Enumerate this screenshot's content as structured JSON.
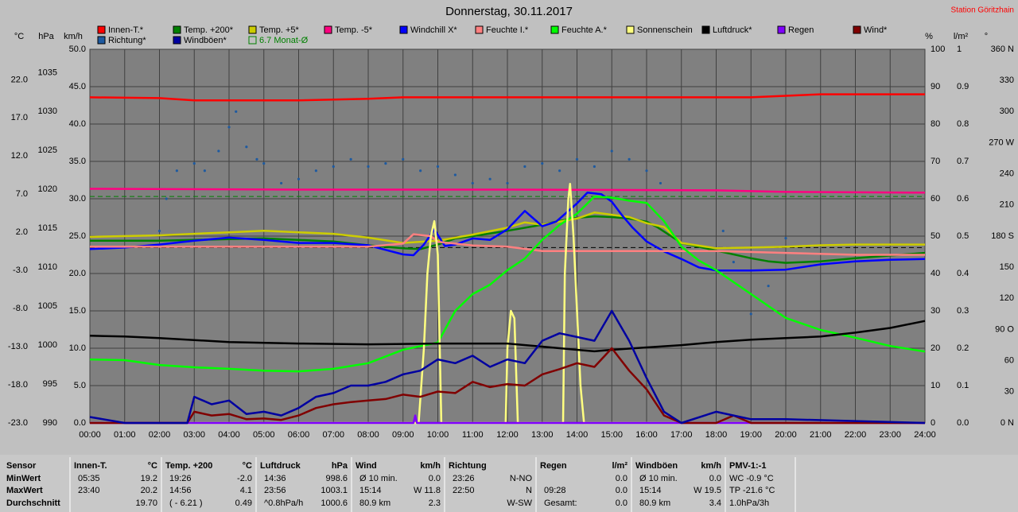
{
  "header": {
    "title": "Donnerstag, 30.11.2017",
    "station": "Station Göritzhain"
  },
  "chart_data": {
    "type": "line",
    "xlim": [
      0,
      24
    ],
    "xticks": [
      {
        "value": 0,
        "label": "00:00"
      },
      {
        "value": 1,
        "label": "01:00"
      },
      {
        "value": 2,
        "label": "02:00"
      },
      {
        "value": 3,
        "label": "03:00"
      },
      {
        "value": 4,
        "label": "04:00"
      },
      {
        "value": 5,
        "label": "05:00"
      },
      {
        "value": 6,
        "label": "06:00"
      },
      {
        "value": 7,
        "label": "07:00"
      },
      {
        "value": 8,
        "label": "08:00"
      },
      {
        "value": 9,
        "label": "09:00"
      },
      {
        "value": 10,
        "label": "10:00"
      },
      {
        "value": 11,
        "label": "11:00"
      },
      {
        "value": 12,
        "label": "12:00"
      },
      {
        "value": 13,
        "label": "13:00"
      },
      {
        "value": 14,
        "label": "14:00"
      },
      {
        "value": 15,
        "label": "15:00"
      },
      {
        "value": 16,
        "label": "16:00"
      },
      {
        "value": 17,
        "label": "17:00"
      },
      {
        "value": 18,
        "label": "18:00"
      },
      {
        "value": 19,
        "label": "19:00"
      },
      {
        "value": 20,
        "label": "20:00"
      },
      {
        "value": 21,
        "label": "21:00"
      },
      {
        "value": 22,
        "label": "22:00"
      },
      {
        "value": 23,
        "label": "23:00"
      },
      {
        "value": 24,
        "label": "24:00"
      }
    ],
    "axes": [
      {
        "label": "°C",
        "lim": [
          -23,
          26
        ],
        "ticks": [
          {
            "value": 22,
            "label": "22.0"
          },
          {
            "value": 17,
            "label": "17.0"
          },
          {
            "value": 12,
            "label": "12.0"
          },
          {
            "value": 7,
            "label": "7.0"
          },
          {
            "value": 2,
            "label": "2.0"
          },
          {
            "value": -3,
            "label": "-3.0"
          },
          {
            "value": -8,
            "label": "-8.0"
          },
          {
            "value": -13,
            "label": "-13.0"
          },
          {
            "value": -18,
            "label": "-18.0"
          },
          {
            "value": -23,
            "label": "-23.0"
          }
        ]
      },
      {
        "label": "hPa",
        "lim": [
          990,
          1038
        ],
        "ticks": [
          1035,
          1030,
          1025,
          1020,
          1015,
          1010,
          1005,
          1000,
          995,
          990
        ]
      },
      {
        "label": "km/h",
        "lim": [
          0,
          50
        ],
        "ticks": [
          {
            "value": 50,
            "label": "50.0"
          },
          {
            "value": 45,
            "label": "45.0"
          },
          {
            "value": 40,
            "label": "40.0"
          },
          {
            "value": 35,
            "label": "35.0"
          },
          {
            "value": 30,
            "label": "30.0"
          },
          {
            "value": 25,
            "label": "25.0"
          },
          {
            "value": 20,
            "label": "20.0"
          },
          {
            "value": 15,
            "label": "15.0"
          },
          {
            "value": 10,
            "label": "10.0"
          },
          {
            "value": 5,
            "label": "5.0"
          },
          {
            "value": 0,
            "label": "0.0"
          }
        ]
      },
      {
        "label": "%",
        "lim": [
          0,
          100
        ],
        "ticks": [
          100,
          90,
          80,
          70,
          60,
          50,
          40,
          30,
          20,
          10,
          0
        ]
      },
      {
        "label": "l/m²",
        "lim": [
          0,
          1
        ],
        "ticks": [
          1,
          0.9,
          0.8,
          0.7,
          0.6,
          0.5,
          0.4,
          0.3,
          0.2,
          0.1,
          {
            "value": 0,
            "label": "0.0"
          }
        ]
      },
      {
        "label": "°",
        "lim": [
          0,
          360
        ],
        "ticks": [
          {
            "value": 360,
            "label": "360 N"
          },
          330,
          300,
          {
            "value": 270,
            "label": "270 W"
          },
          240,
          210,
          {
            "value": 180,
            "label": "180 S"
          },
          150,
          120,
          {
            "value": 90,
            "label": "90 O"
          },
          60,
          30,
          {
            "value": 0,
            "label": "0 N"
          }
        ]
      }
    ],
    "grid": true,
    "grid_axis": "km/h",
    "series": [
      {
        "name": "Innen-T.*",
        "color": "#ff0000",
        "axis": "°C",
        "x": [
          0,
          2,
          3,
          6,
          8,
          9,
          12,
          16,
          19,
          20,
          21,
          24
        ],
        "values": [
          19.7,
          19.6,
          19.3,
          19.3,
          19.5,
          19.7,
          19.7,
          19.7,
          19.7,
          19.9,
          20.1,
          20.1
        ]
      },
      {
        "name": "Temp. +200*",
        "color": "#008000",
        "axis": "°C",
        "x": [
          0,
          2,
          4,
          5,
          7,
          8,
          9,
          9.5,
          10,
          10.5,
          11,
          12,
          13,
          13.5,
          14,
          14.5,
          15,
          15.5,
          16,
          16.3,
          17,
          18,
          19,
          19.5,
          20,
          21,
          22,
          24
        ],
        "values": [
          0.9,
          0.9,
          1.1,
          1.2,
          0.8,
          0.3,
          -0.1,
          -0.2,
          0.4,
          1.2,
          1.5,
          2.2,
          3.0,
          3.5,
          3.9,
          4.1,
          4.0,
          3.8,
          3.4,
          2.7,
          0.6,
          -0.4,
          -1.4,
          -1.8,
          -2.0,
          -1.8,
          -1.4,
          -0.7
        ]
      },
      {
        "name": "Temp. +5*",
        "color": "#cccc00",
        "axis": "°C",
        "x": [
          0,
          2,
          4,
          5,
          7,
          8,
          9,
          10,
          11,
          12,
          12.5,
          13,
          14,
          14.5,
          15,
          15.5,
          16,
          16.5,
          17,
          18,
          19,
          20,
          21,
          22,
          24
        ],
        "values": [
          1.4,
          1.6,
          2.0,
          2.2,
          1.8,
          1.3,
          0.6,
          0.9,
          1.7,
          2.6,
          3.3,
          3.0,
          3.8,
          4.6,
          4.3,
          4.0,
          3.2,
          2.7,
          0.6,
          -0.1,
          0.0,
          0.1,
          0.3,
          0.4,
          0.4
        ]
      },
      {
        "name": "Temp. -5*",
        "color": "#ff0080",
        "axis": "°C",
        "x": [
          0,
          6,
          12,
          18,
          20,
          24
        ],
        "values": [
          7.7,
          7.6,
          7.6,
          7.5,
          7.3,
          7.2
        ]
      },
      {
        "name": "Windchill X*",
        "color": "#0000ff",
        "axis": "°C",
        "x": [
          0,
          1,
          2,
          3,
          4,
          5,
          6,
          7,
          8,
          8.5,
          9,
          9.3,
          9.6,
          9.9,
          10.2,
          10.5,
          11,
          11.5,
          12,
          12.5,
          13,
          13.4,
          14,
          14.3,
          14.7,
          15,
          15.3,
          15.6,
          16,
          16.5,
          17,
          17.5,
          18,
          19,
          20,
          21,
          22,
          23,
          24
        ],
        "values": [
          -0.2,
          0.0,
          0.4,
          0.9,
          1.3,
          1.0,
          0.6,
          0.6,
          0.3,
          -0.3,
          -0.9,
          -1.0,
          0.4,
          2.4,
          0.2,
          0.4,
          1.2,
          1.0,
          2.4,
          4.8,
          2.8,
          3.4,
          5.8,
          7.2,
          7.0,
          6.0,
          4.2,
          2.6,
          0.8,
          -0.5,
          -1.5,
          -2.6,
          -3.0,
          -3.0,
          -2.9,
          -2.2,
          -1.8,
          -1.6,
          -1.5
        ]
      },
      {
        "name": "Feuchte I.*",
        "color": "#ff8080",
        "axis": "%",
        "x": [
          0,
          6,
          8,
          9,
          9.3,
          9.8,
          10,
          11,
          12,
          13,
          14,
          15,
          16,
          17,
          18,
          20,
          22,
          24
        ],
        "values": [
          47.2,
          47.2,
          47.2,
          48,
          50.5,
          50,
          48.5,
          47.5,
          47.2,
          46,
          46,
          46,
          46,
          46,
          46,
          45.5,
          45,
          45
        ]
      },
      {
        "name": "Feuchte A.*",
        "color": "#00ff00",
        "axis": "%",
        "x": [
          0,
          1,
          2,
          3,
          4,
          5,
          6,
          7,
          8,
          9,
          10,
          10.5,
          11,
          11.5,
          12,
          12.5,
          13,
          13.5,
          14,
          14.5,
          15,
          15.5,
          16,
          16.5,
          17,
          17.5,
          18,
          19,
          20,
          21,
          22,
          23,
          24
        ],
        "values": [
          17.0,
          16.8,
          15.5,
          14.9,
          14.5,
          14.0,
          13.8,
          14.5,
          16,
          19.6,
          21.5,
          30,
          34.5,
          37,
          40.9,
          44,
          49,
          53,
          56,
          60.6,
          60.3,
          59.5,
          58.9,
          54,
          47.2,
          43.5,
          40.9,
          34.5,
          28.1,
          24.9,
          22.8,
          20.6,
          19.1
        ]
      },
      {
        "name": "Sonnenschein",
        "color": "#ffff80",
        "axis": "%",
        "x": [
          0,
          9.45,
          9.6,
          9.7,
          9.8,
          9.9,
          10.0,
          10.1,
          11.95,
          12.0,
          12.1,
          12.2,
          12.3,
          13.6,
          13.65,
          13.75,
          13.8,
          13.9,
          14.0,
          14.1,
          14.2,
          24
        ],
        "values": [
          0,
          0,
          20,
          40,
          50,
          54,
          45,
          0,
          0,
          20,
          30,
          28,
          0,
          0,
          40,
          60,
          64,
          50,
          30,
          10,
          0,
          0
        ]
      },
      {
        "name": "Luftdruck*",
        "color": "#000000",
        "axis": "hPa",
        "x": [
          0,
          1,
          2,
          4,
          6,
          8,
          10,
          12,
          13,
          14,
          14.5,
          15,
          16,
          17,
          18,
          19,
          20,
          21,
          22,
          23,
          24
        ],
        "values": [
          1001.2,
          1001.1,
          1000.9,
          1000.4,
          1000.2,
          1000.1,
          1000.2,
          1000.2,
          999.8,
          999.4,
          999.2,
          999.4,
          999.7,
          1000,
          1000.4,
          1000.7,
          1000.9,
          1001.1,
          1001.6,
          1002.2,
          1003.1
        ]
      },
      {
        "name": "Regen",
        "color": "#8000ff",
        "axis": "l/m²",
        "x": [
          0,
          9.3,
          9.35,
          9.4,
          24
        ],
        "values": [
          0,
          0,
          0.02,
          0,
          0
        ]
      },
      {
        "name": "Wind*",
        "color": "#800000",
        "axis": "km/h",
        "x": [
          0,
          1,
          2,
          2.8,
          3,
          3.5,
          4,
          4.5,
          5,
          5.5,
          6,
          6.5,
          7,
          7.5,
          8,
          8.5,
          9,
          9.5,
          10,
          10.5,
          11,
          11.5,
          12,
          12.5,
          13,
          13.5,
          14,
          14.5,
          15,
          15.5,
          16,
          16.5,
          17,
          18,
          18.5,
          19,
          20,
          24
        ],
        "values": [
          0,
          0,
          0,
          0,
          1.5,
          1.0,
          1.2,
          0.5,
          0.6,
          0.4,
          1.0,
          2.0,
          2.5,
          2.8,
          3.0,
          3.2,
          3.8,
          3.5,
          4.2,
          4.0,
          5.5,
          4.8,
          5.2,
          5.0,
          6.5,
          7.2,
          8.0,
          7.5,
          10.0,
          7.0,
          4.5,
          1.0,
          0,
          0,
          1.0,
          0,
          0,
          0
        ]
      },
      {
        "name": "Richtung*",
        "type": "scatter",
        "color": "#1e5aa0",
        "axis": "°",
        "x": [
          2.0,
          2.2,
          2.5,
          3.0,
          3.3,
          3.7,
          4.0,
          4.2,
          4.5,
          4.8,
          5.0,
          5.5,
          6.0,
          6.5,
          7.0,
          7.5,
          8.0,
          8.5,
          9.0,
          9.5,
          10.0,
          10.5,
          11.0,
          11.5,
          12.0,
          12.5,
          13.0,
          13.5,
          14.0,
          14.5,
          15.0,
          15.5,
          16.0,
          16.4,
          18.2,
          18.5,
          19.0,
          19.5,
          20.0
        ],
        "values": [
          185,
          216,
          243,
          250,
          243,
          262,
          285,
          300,
          266,
          254,
          250,
          231,
          235,
          243,
          247,
          254,
          247,
          250,
          254,
          243,
          247,
          239,
          231,
          235,
          231,
          247,
          250,
          243,
          254,
          247,
          262,
          254,
          243,
          231,
          185,
          155,
          105,
          132,
          178
        ]
      },
      {
        "name": "Windböen*",
        "color": "#0000a0",
        "axis": "km/h",
        "x": [
          0,
          1,
          2,
          2.8,
          3,
          3.5,
          4,
          4.5,
          5,
          5.5,
          6,
          6.5,
          7,
          7.5,
          8,
          8.5,
          9,
          9.5,
          10,
          10.5,
          11,
          11.5,
          12,
          12.5,
          13,
          13.5,
          14,
          14.5,
          15,
          15.5,
          16,
          16.5,
          17,
          18,
          18.5,
          19,
          20,
          24
        ],
        "values": [
          0.8,
          0,
          0,
          0,
          3.5,
          2.5,
          3.0,
          1.2,
          1.5,
          1.0,
          2.0,
          3.5,
          4.0,
          5.0,
          5.0,
          5.5,
          6.5,
          7.0,
          8.5,
          8.0,
          9.0,
          7.5,
          8.5,
          8.0,
          11.0,
          12.0,
          11.5,
          11.0,
          15.0,
          11.0,
          6.0,
          1.5,
          0,
          1.5,
          1.0,
          0.5,
          0.5,
          0
        ]
      }
    ],
    "monthly_avg": {
      "value": 6.7,
      "label": "6.7 Monat-Ø",
      "color": "#008000",
      "axis": "°C"
    },
    "reference_line": {
      "value": 0,
      "axis": "°C",
      "color": "#000000"
    }
  },
  "table": {
    "columns": [
      {
        "header": "Sensor",
        "rows": [
          [
            "MinWert"
          ],
          [
            "MaxWert"
          ],
          [
            "Durchschnitt"
          ]
        ]
      },
      {
        "header": "Innen-T.",
        "unit": "°C",
        "rows": [
          [
            "05:35",
            "19.2"
          ],
          [
            "23:40",
            "20.2"
          ],
          [
            "19.70"
          ]
        ]
      },
      {
        "header": "Temp. +200",
        "unit": "°C",
        "rows": [
          [
            "19:26",
            "-2.0"
          ],
          [
            "14:56",
            "4.1"
          ],
          [
            "( - 6.21 )",
            "0.49"
          ]
        ]
      },
      {
        "header": "Luftdruck",
        "unit": "hPa",
        "rows": [
          [
            "14:36",
            "998.6"
          ],
          [
            "23:56",
            "1003.1"
          ],
          [
            "^0.8hPa/h",
            "1000.6"
          ]
        ]
      },
      {
        "header": "Wind",
        "unit": "km/h",
        "rows": [
          [
            "Ø 10 min.",
            "0.0"
          ],
          [
            "15:14",
            "W 11.8"
          ],
          [
            "80.9 km",
            "2.3"
          ]
        ]
      },
      {
        "header": "Richtung",
        "rows": [
          [
            "23:26",
            "N-NO"
          ],
          [
            "22:50",
            "N"
          ],
          [
            "W-SW"
          ]
        ]
      },
      {
        "header": "Regen",
        "unit": "l/m²",
        "rows": [
          [
            "0.0"
          ],
          [
            "09:28",
            "0.0"
          ],
          [
            "Gesamt:",
            "0.0"
          ]
        ]
      },
      {
        "header": "Windböen",
        "unit": "km/h",
        "rows": [
          [
            "Ø 10 min.",
            "0.0"
          ],
          [
            "15:14",
            "W 19.5"
          ],
          [
            "80.9 km",
            "3.4"
          ]
        ]
      },
      {
        "header": "PMV-1:-1",
        "rows": [
          [
            "WC -0.9 °C"
          ],
          [
            "TP -21.6 °C"
          ],
          [
            "1.0hPa/3h"
          ]
        ]
      }
    ]
  }
}
